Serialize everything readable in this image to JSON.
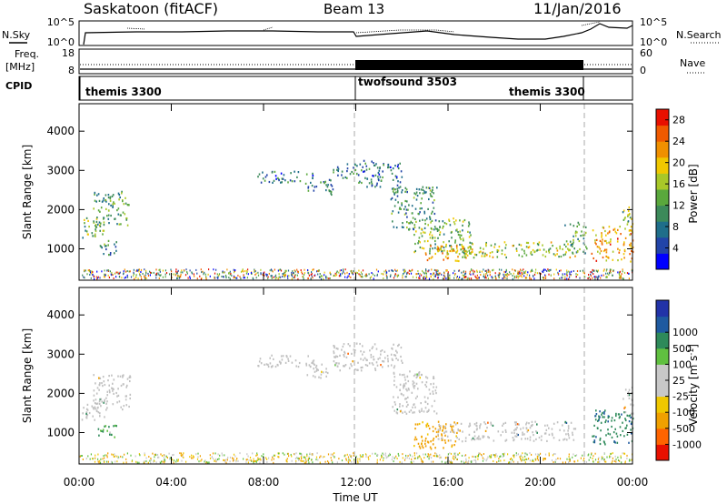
{
  "header": {
    "station": "Saskatoon (fitACF)",
    "beam": "Beam 13",
    "date": "11/Jan/2016"
  },
  "noise_panel": {
    "left_label": "N.Sky",
    "left_ticks": [
      "10^5",
      "10^0"
    ],
    "right_ticks": [
      "10^5",
      "10^0"
    ],
    "right_label": "N.Search"
  },
  "freq_panel": {
    "left_label_1": "Freq.",
    "left_label_2": "[MHz]",
    "left_ticks": [
      "18",
      "8"
    ],
    "right_ticks": [
      "60",
      "0"
    ],
    "right_label": "Nave"
  },
  "cpid_panel": {
    "label": "CPID",
    "modes": [
      {
        "name": "themis 3300",
        "start_hour": 0
      },
      {
        "name": "twofsound 3503",
        "start_hour": 12
      },
      {
        "name": "themis 3300",
        "start_hour": 21.9
      }
    ]
  },
  "colors": {
    "power_scale": [
      "#0000ff",
      "#2244a8",
      "#1f6e8a",
      "#3c8a5a",
      "#5aa83c",
      "#a8c828",
      "#f0c800",
      "#f09000",
      "#f05a00",
      "#e81000"
    ],
    "velocity_scale": [
      "#e81000",
      "#ff6400",
      "#f0a000",
      "#f0c800",
      "#c8c8c8",
      "#c8c8c8",
      "#60c040",
      "#2e8a5a",
      "#1f5aa0",
      "#2233a8"
    ],
    "ground_scatter": "#c0c0c0"
  },
  "chart_data": [
    {
      "type": "heatmap",
      "title": "Power",
      "xlabel": "",
      "ylabel": "Slant Range [km]",
      "y_ticks": [
        "1000",
        "2000",
        "3000",
        "4000"
      ],
      "ylim": [
        200,
        4700
      ],
      "xlim_hours": [
        0,
        24
      ],
      "colorbar_label": "Power [dB]",
      "colorbar_ticks": [
        "4",
        "8",
        "12",
        "16",
        "20",
        "24",
        "28"
      ],
      "colorbar_range": [
        0,
        30
      ],
      "scatter_regions": [
        {
          "t0": 0.1,
          "t1": 1.1,
          "r0": 1300,
          "r1": 1850,
          "value": 14
        },
        {
          "t0": 0.6,
          "t1": 2.2,
          "r0": 1600,
          "r1": 2500,
          "value": 12
        },
        {
          "t0": 0.8,
          "t1": 1.6,
          "r0": 850,
          "r1": 1250,
          "value": 10
        },
        {
          "t0": 7.7,
          "t1": 10.2,
          "r0": 2700,
          "r1": 3000,
          "value": 8
        },
        {
          "t0": 9.8,
          "t1": 11.0,
          "r0": 2400,
          "r1": 2800,
          "value": 8
        },
        {
          "t0": 11.0,
          "t1": 12.0,
          "r0": 2800,
          "r1": 3200,
          "value": 8
        },
        {
          "t0": 12.0,
          "t1": 14.0,
          "r0": 2600,
          "r1": 3300,
          "value": 8
        },
        {
          "t0": 13.5,
          "t1": 15.5,
          "r0": 1500,
          "r1": 2600,
          "value": 10
        },
        {
          "t0": 14.5,
          "t1": 17.0,
          "r0": 900,
          "r1": 1800,
          "value": 14
        },
        {
          "t0": 15.0,
          "t1": 17.5,
          "r0": 700,
          "r1": 1100,
          "value": 20
        },
        {
          "t0": 16.5,
          "t1": 21.5,
          "r0": 800,
          "r1": 1200,
          "value": 16
        },
        {
          "t0": 21.0,
          "t1": 22.0,
          "r0": 900,
          "r1": 1700,
          "value": 12
        },
        {
          "t0": 22.2,
          "t1": 24.0,
          "r0": 700,
          "r1": 1600,
          "value": 22
        },
        {
          "t0": 23.5,
          "t1": 24.0,
          "r0": 1500,
          "r1": 2200,
          "value": 14
        }
      ]
    },
    {
      "type": "heatmap",
      "title": "Velocity",
      "xlabel": "Time UT",
      "ylabel": "Slant Range [km]",
      "y_ticks": [
        "1000",
        "2000",
        "3000",
        "4000"
      ],
      "ylim": [
        200,
        4700
      ],
      "xlim_hours": [
        0,
        24
      ],
      "x_ticks": [
        "00:00",
        "04:00",
        "08:00",
        "12:00",
        "16:00",
        "20:00",
        "00:00"
      ],
      "colorbar_label": "Velocity [m s^-1]",
      "colorbar_ticks": [
        "-1000",
        "-500",
        "-100",
        "-25",
        "25",
        "100",
        "500",
        "1000"
      ],
      "scatter_regions": [
        {
          "t0": 0.1,
          "t1": 1.1,
          "r0": 1300,
          "r1": 1850,
          "value": "ground"
        },
        {
          "t0": 0.6,
          "t1": 2.2,
          "r0": 1600,
          "r1": 2500,
          "value": "ground"
        },
        {
          "t0": 0.8,
          "t1": 1.6,
          "r0": 850,
          "r1": 1250,
          "value": 150
        },
        {
          "t0": 7.7,
          "t1": 10.2,
          "r0": 2700,
          "r1": 3000,
          "value": "ground"
        },
        {
          "t0": 9.8,
          "t1": 11.0,
          "r0": 2400,
          "r1": 2800,
          "value": "ground"
        },
        {
          "t0": 11.0,
          "t1": 14.0,
          "r0": 2600,
          "r1": 3300,
          "value": "ground"
        },
        {
          "t0": 13.5,
          "t1": 15.5,
          "r0": 1500,
          "r1": 2600,
          "value": "ground"
        },
        {
          "t0": 14.5,
          "t1": 16.5,
          "r0": 600,
          "r1": 1300,
          "value": -200
        },
        {
          "t0": 15.5,
          "t1": 21.5,
          "r0": 800,
          "r1": 1300,
          "value": "ground"
        },
        {
          "t0": 22.2,
          "t1": 24.0,
          "r0": 700,
          "r1": 1600,
          "value": 400
        },
        {
          "t0": 23.5,
          "t1": 24.0,
          "r0": 1500,
          "r1": 2200,
          "value": "ground"
        }
      ]
    }
  ]
}
